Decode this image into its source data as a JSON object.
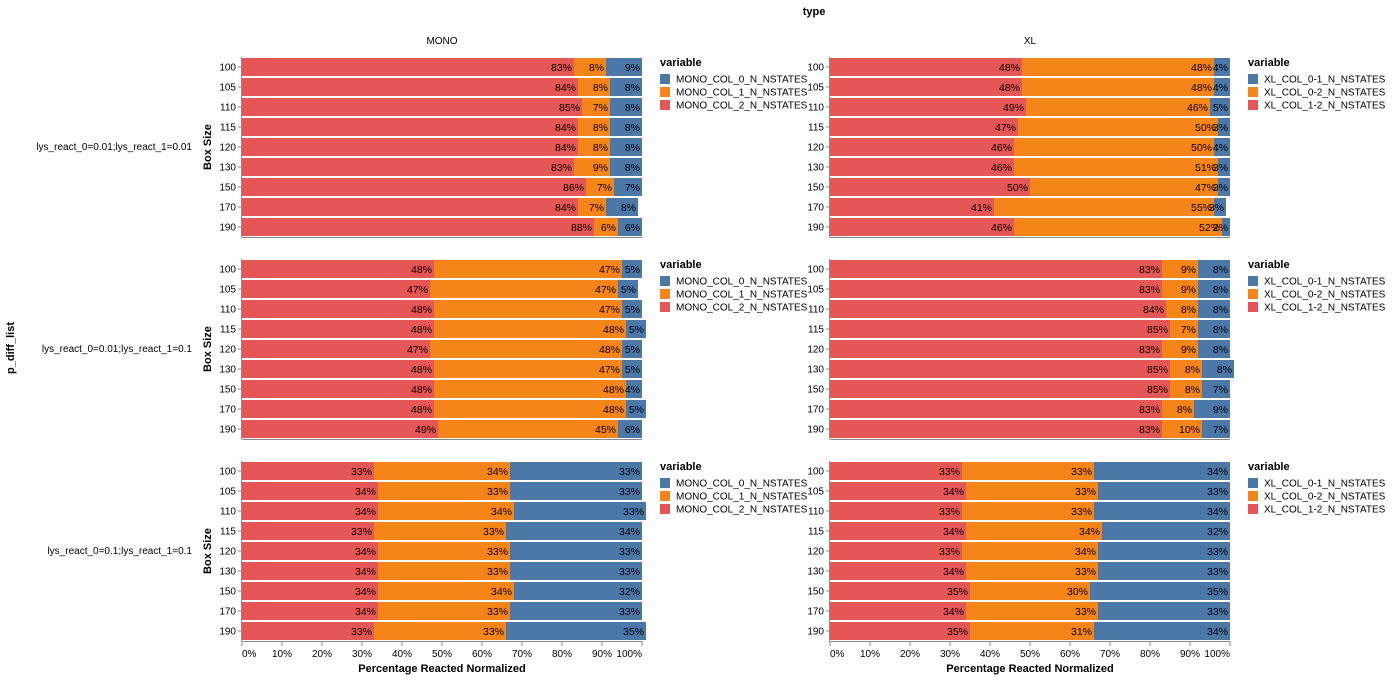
{
  "chart_data": {
    "type": "bar",
    "stacked": "normalize",
    "orientation": "horizontal",
    "column_header": "type",
    "row_header": "p_diff_list",
    "columns": [
      "MONO",
      "XL"
    ],
    "rows": [
      "lys_react_0=0.01;lys_react_1=0.01",
      "lys_react_0=0.01;lys_react_1=0.1",
      "lys_react_0=0.1;lys_react_1=0.1"
    ],
    "categories": [
      "100",
      "105",
      "110",
      "115",
      "120",
      "130",
      "150",
      "170",
      "190"
    ],
    "ylabel": "Box Size",
    "xlabel": "Percentage Reacted Normalized",
    "xlim": [
      0,
      100
    ],
    "xticks": [
      "0%",
      "10%",
      "20%",
      "30%",
      "40%",
      "50%",
      "60%",
      "70%",
      "80%",
      "90%",
      "100%"
    ],
    "legend_title": "variable",
    "colors": {
      "red": "#e45756",
      "orange": "#f58518",
      "blue": "#4c78a8"
    },
    "legends": {
      "MONO": [
        "MONO_COL_0_N_NSTATES",
        "MONO_COL_1_N_NSTATES",
        "MONO_COL_2_N_NSTATES"
      ],
      "XL": [
        "XL_COL_0-1_N_NSTATES",
        "XL_COL_0-2_N_NSTATES",
        "XL_COL_1-2_N_NSTATES"
      ]
    },
    "panels": [
      {
        "row": 0,
        "col": 0,
        "series": {
          "red": [
            83,
            84,
            85,
            84,
            84,
            83,
            86,
            84,
            88
          ],
          "orange": [
            8,
            8,
            7,
            8,
            8,
            9,
            7,
            7,
            6
          ],
          "blue": [
            9,
            8,
            8,
            8,
            8,
            8,
            7,
            8,
            6
          ]
        }
      },
      {
        "row": 0,
        "col": 1,
        "series": {
          "red": [
            48,
            48,
            49,
            47,
            46,
            46,
            50,
            41,
            46
          ],
          "orange": [
            48,
            48,
            46,
            50,
            50,
            51,
            47,
            55,
            52
          ],
          "blue": [
            4,
            4,
            5,
            3,
            4,
            3,
            3,
            3,
            2
          ]
        }
      },
      {
        "row": 1,
        "col": 0,
        "series": {
          "red": [
            48,
            47,
            48,
            48,
            47,
            48,
            48,
            48,
            49
          ],
          "orange": [
            47,
            47,
            47,
            48,
            48,
            47,
            48,
            48,
            45
          ],
          "blue": [
            5,
            5,
            5,
            5,
            5,
            5,
            4,
            5,
            6
          ]
        }
      },
      {
        "row": 1,
        "col": 1,
        "series": {
          "red": [
            83,
            83,
            84,
            85,
            83,
            85,
            85,
            83,
            83
          ],
          "orange": [
            9,
            9,
            8,
            7,
            9,
            8,
            8,
            8,
            10
          ],
          "blue": [
            8,
            8,
            8,
            8,
            8,
            8,
            7,
            9,
            7
          ]
        }
      },
      {
        "row": 2,
        "col": 0,
        "series": {
          "red": [
            33,
            34,
            34,
            33,
            34,
            34,
            34,
            34,
            33
          ],
          "orange": [
            34,
            33,
            34,
            33,
            33,
            33,
            34,
            33,
            33
          ],
          "blue": [
            33,
            33,
            33,
            34,
            33,
            33,
            32,
            33,
            35
          ]
        }
      },
      {
        "row": 2,
        "col": 1,
        "series": {
          "red": [
            33,
            34,
            33,
            34,
            33,
            34,
            35,
            34,
            35
          ],
          "orange": [
            33,
            33,
            33,
            34,
            34,
            33,
            30,
            33,
            31
          ],
          "blue": [
            34,
            33,
            34,
            32,
            33,
            33,
            35,
            33,
            34
          ]
        }
      }
    ]
  }
}
